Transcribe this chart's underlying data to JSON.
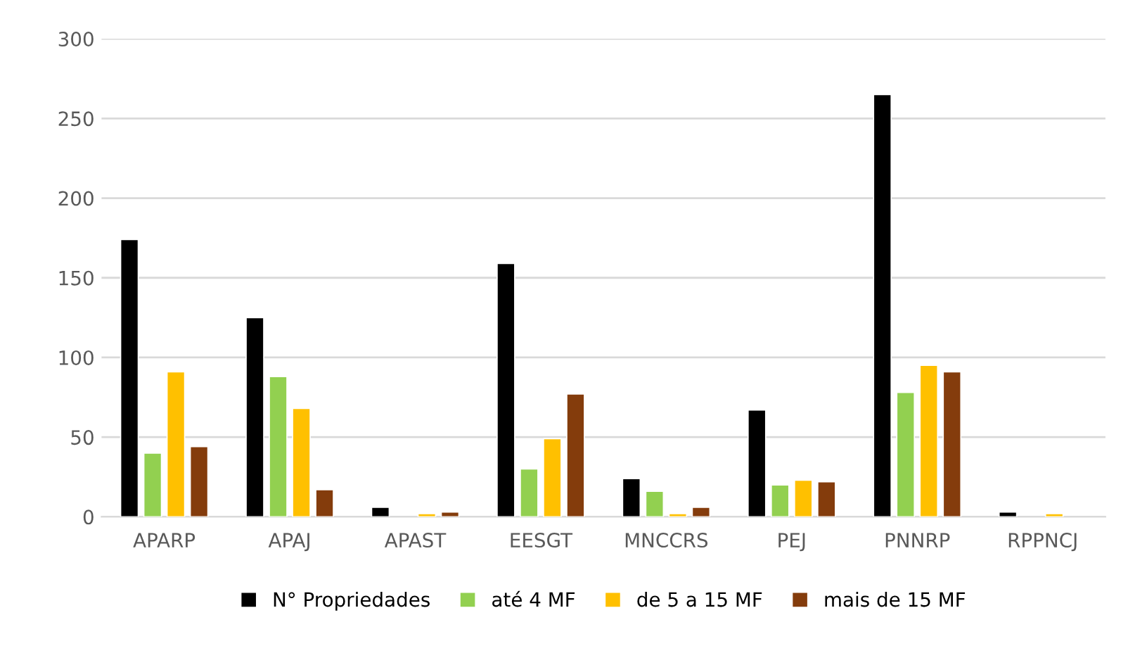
{
  "chart_data": {
    "type": "bar",
    "categories": [
      "APARP",
      "APAJ",
      "APAST",
      "EESGT",
      "MNCCRS",
      "PEJ",
      "PNNRP",
      "RPPNCJ"
    ],
    "series": [
      {
        "name": "N° Propriedades",
        "color": "#000000",
        "values": [
          174,
          125,
          6,
          159,
          24,
          67,
          265,
          3
        ]
      },
      {
        "name": "até 4 MF",
        "color": "#92d050",
        "values": [
          40,
          88,
          null,
          30,
          16,
          20,
          78,
          null
        ]
      },
      {
        "name": "de 5 a 15 MF",
        "color": "#ffc000",
        "values": [
          91,
          68,
          2,
          49,
          2,
          23,
          95,
          2
        ]
      },
      {
        "name": "mais de 15 MF",
        "color": "#843c0c",
        "values": [
          44,
          17,
          3,
          77,
          6,
          22,
          91,
          null
        ]
      }
    ],
    "ylim": [
      0,
      300
    ],
    "yticks": [
      0,
      50,
      100,
      150,
      200,
      250,
      300
    ],
    "grid": "y",
    "legend": "bottom"
  }
}
